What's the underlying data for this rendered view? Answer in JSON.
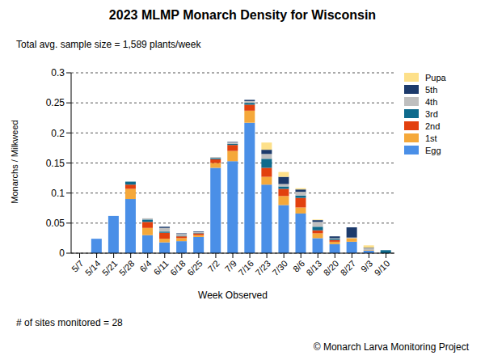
{
  "chart_data": {
    "type": "bar",
    "title": "2023 MLMP Monarch Density for Wisconsin",
    "subtitle": "Total avg. sample size = 1,589 plants/week",
    "x_label": "Week Observed",
    "y_label": "Monarchs / Milkweed",
    "annotations": [
      "# of sites monitored = 28",
      "© Monarch Larva Monitoring Project"
    ],
    "categories": [
      "5/7",
      "5/14",
      "5/21",
      "5/28",
      "6/4",
      "6/11",
      "6/18",
      "6/25",
      "7/2",
      "7/9",
      "7/16",
      "7/23",
      "7/30",
      "8/6",
      "8/13",
      "8/20",
      "8/27",
      "9/3",
      "9/10"
    ],
    "series": [
      {
        "name": "Egg",
        "color": "#4a8fe7",
        "values": [
          0,
          0.024,
          0.062,
          0.09,
          0.03,
          0.018,
          0.02,
          0.027,
          0.142,
          0.153,
          0.217,
          0.114,
          0.08,
          0.066,
          0.025,
          0.015,
          0.019,
          0.004,
          0
        ]
      },
      {
        "name": "1st",
        "color": "#f5a83a",
        "values": [
          0,
          0,
          0,
          0.017,
          0.012,
          0.006,
          0.005,
          0.003,
          0.008,
          0.017,
          0.02,
          0.013,
          0.015,
          0.01,
          0.008,
          0.004,
          0.006,
          0.001,
          0
        ]
      },
      {
        "name": "2nd",
        "color": "#e2400e",
        "values": [
          0,
          0,
          0,
          0.007,
          0.01,
          0.01,
          0.003,
          0.003,
          0.006,
          0.01,
          0.01,
          0.015,
          0.012,
          0.016,
          0.005,
          0.003,
          0,
          0,
          0
        ]
      },
      {
        "name": "3rd",
        "color": "#0e6a8c",
        "values": [
          0,
          0,
          0,
          0.005,
          0.004,
          0.002,
          0.001,
          0.001,
          0.002,
          0.002,
          0.003,
          0.015,
          0.004,
          0.004,
          0.006,
          0.002,
          0,
          0,
          0.005
        ]
      },
      {
        "name": "4th",
        "color": "#bfbfbf",
        "values": [
          0,
          0,
          0,
          0,
          0.002,
          0.006,
          0.003,
          0.001,
          0.002,
          0.002,
          0.003,
          0.008,
          0.004,
          0.006,
          0.008,
          0.001,
          0.001,
          0.003,
          0
        ]
      },
      {
        "name": "5th",
        "color": "#1c3a6b",
        "values": [
          0,
          0,
          0,
          0,
          0,
          0.002,
          0.001,
          0.001,
          0,
          0.001,
          0.002,
          0.007,
          0.012,
          0.004,
          0.003,
          0.003,
          0.017,
          0.001,
          0
        ]
      },
      {
        "name": "Pupa",
        "color": "#fde08a",
        "values": [
          0,
          0,
          0,
          0,
          0,
          0,
          0,
          0,
          0,
          0,
          0,
          0.012,
          0.008,
          0.002,
          0.001,
          0,
          0,
          0.004,
          0
        ]
      }
    ],
    "ylim": [
      0,
      0.3
    ],
    "yticks": [
      0,
      0.05,
      0.1,
      0.15,
      0.2,
      0.25,
      0.3
    ],
    "grid": true,
    "stacked": true,
    "legend": "right"
  }
}
